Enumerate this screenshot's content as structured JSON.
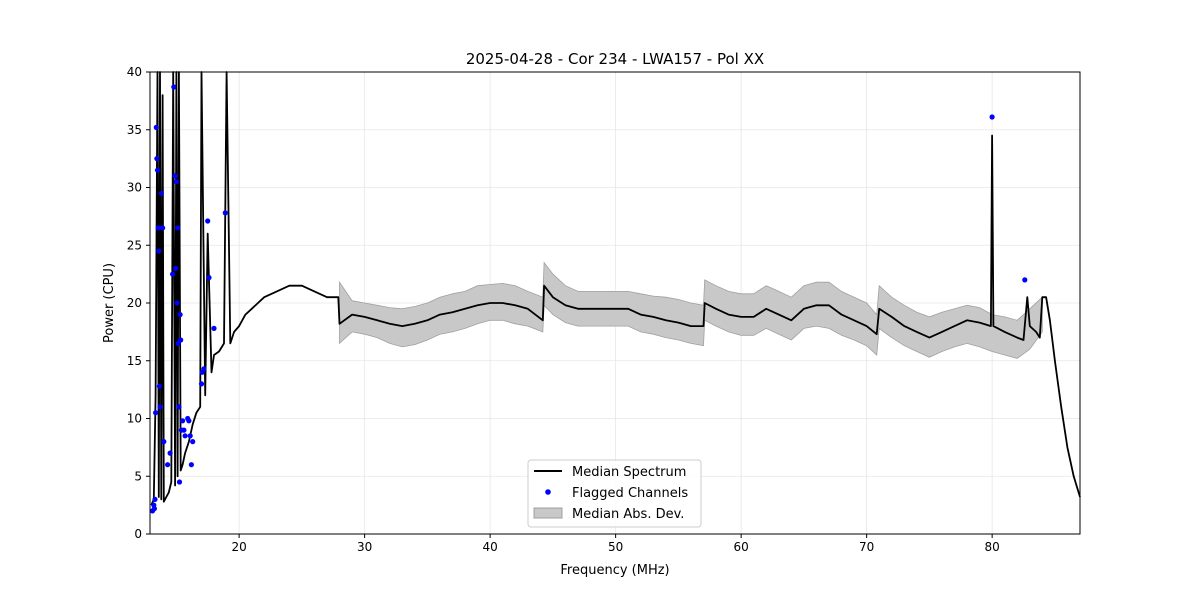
{
  "chart_data": {
    "type": "line",
    "title": "2025-04-28 - Cor 234 - LWA157 - Pol XX",
    "xlabel": "Frequency (MHz)",
    "ylabel": "Power (CPU)",
    "xlim": [
      12.9,
      87.0
    ],
    "ylim": [
      0,
      40
    ],
    "xticks": [
      20,
      30,
      40,
      50,
      60,
      70,
      80
    ],
    "yticks": [
      0,
      5,
      10,
      15,
      20,
      25,
      30,
      35,
      40
    ],
    "grid": true,
    "legend": {
      "position": "lower-center",
      "entries": [
        "Median Spectrum",
        "Flagged Channels",
        "Median Abs. Dev."
      ]
    },
    "colors": {
      "line": "#000000",
      "flag": "#0000ff",
      "band": "#c8c8c8",
      "band_edge": "#a0a0a0",
      "grid": "#e6e6e6"
    },
    "series": [
      {
        "name": "Median Spectrum",
        "x": [
          13.0,
          13.2,
          13.35,
          13.5,
          13.6,
          13.7,
          13.8,
          13.9,
          14.0,
          14.2,
          14.4,
          14.6,
          14.75,
          14.9,
          15.0,
          15.1,
          15.2,
          15.35,
          15.5,
          15.7,
          16.0,
          16.3,
          16.6,
          16.9,
          17.0,
          17.3,
          17.5,
          17.8,
          18.0,
          18.4,
          18.8,
          19.0,
          19.3,
          19.6,
          20.0,
          20.5,
          21.0,
          22.0,
          23.0,
          24.0,
          25.0,
          26.0,
          27.0,
          27.9,
          28.0,
          29.0,
          30.0,
          31.0,
          32.0,
          33.0,
          34.0,
          35.0,
          36.0,
          37.0,
          38.0,
          39.0,
          40.0,
          41.0,
          42.0,
          43.0,
          44.2,
          44.3,
          45.0,
          46.0,
          47.0,
          48.0,
          49.0,
          50.0,
          51.0,
          52.0,
          53.0,
          54.0,
          55.0,
          56.0,
          57.0,
          57.1,
          58.0,
          59.0,
          60.0,
          61.0,
          62.0,
          63.0,
          64.0,
          65.0,
          66.0,
          67.0,
          68.0,
          69.0,
          70.0,
          70.8,
          71.0,
          72.0,
          73.0,
          74.0,
          75.0,
          76.0,
          77.0,
          78.0,
          79.0,
          79.9,
          80.0,
          80.1,
          81.0,
          82.0,
          82.5,
          82.8,
          83.0,
          83.5,
          83.8,
          84.0,
          84.3,
          84.6,
          85.0,
          85.5,
          86.0,
          86.5,
          87.0
        ],
        "y": [
          2.5,
          3.0,
          12.0,
          40.0,
          3.2,
          40.0,
          3.0,
          38.0,
          2.8,
          3.2,
          3.6,
          4.5,
          40.0,
          4.2,
          40.0,
          5.0,
          40.0,
          5.5,
          6.0,
          7.0,
          8.0,
          9.5,
          10.5,
          11.0,
          40.0,
          12.0,
          26.0,
          14.0,
          15.5,
          15.8,
          16.5,
          40.0,
          16.5,
          17.5,
          18.0,
          19.0,
          19.5,
          20.5,
          21.0,
          21.5,
          21.5,
          21.0,
          20.5,
          20.5,
          18.2,
          19.0,
          18.8,
          18.5,
          18.2,
          18.0,
          18.2,
          18.5,
          19.0,
          19.2,
          19.5,
          19.8,
          20.0,
          20.0,
          19.8,
          19.5,
          18.5,
          21.5,
          20.5,
          19.8,
          19.5,
          19.5,
          19.5,
          19.5,
          19.5,
          19.0,
          18.8,
          18.5,
          18.3,
          18.0,
          18.0,
          20.0,
          19.5,
          19.0,
          18.8,
          18.8,
          19.5,
          19.0,
          18.5,
          19.5,
          19.8,
          19.8,
          19.0,
          18.5,
          18.0,
          17.3,
          19.5,
          18.8,
          18.0,
          17.5,
          17.0,
          17.5,
          18.0,
          18.5,
          18.3,
          18.0,
          34.5,
          18.0,
          17.5,
          17.0,
          16.8,
          20.5,
          18.0,
          17.5,
          17.0,
          20.5,
          20.5,
          18.5,
          15.0,
          11.0,
          7.5,
          5.0,
          3.2
        ]
      }
    ],
    "band": {
      "name": "Median Abs. Dev.",
      "x": [
        28.0,
        29.0,
        30.0,
        31.0,
        32.0,
        33.0,
        34.0,
        35.0,
        36.0,
        37.0,
        38.0,
        39.0,
        40.0,
        41.0,
        42.0,
        43.0,
        44.2,
        44.3,
        45.0,
        46.0,
        47.0,
        48.0,
        49.0,
        50.0,
        51.0,
        52.0,
        53.0,
        54.0,
        55.0,
        56.0,
        57.0,
        57.1,
        58.0,
        59.0,
        60.0,
        61.0,
        62.0,
        63.0,
        64.0,
        65.0,
        66.0,
        67.0,
        68.0,
        69.0,
        70.0,
        70.8,
        71.0,
        72.0,
        73.0,
        74.0,
        75.0,
        76.0,
        77.0,
        78.0,
        79.0,
        80.0,
        81.0,
        82.0,
        83.0,
        84.0
      ],
      "upper": [
        21.8,
        20.2,
        20.0,
        19.8,
        19.6,
        19.5,
        19.7,
        20.0,
        20.5,
        20.8,
        21.0,
        21.5,
        21.6,
        21.7,
        21.5,
        21.0,
        20.5,
        23.5,
        22.5,
        21.5,
        21.0,
        21.0,
        21.0,
        21.0,
        21.0,
        20.8,
        20.6,
        20.5,
        20.3,
        20.0,
        19.8,
        22.0,
        21.5,
        21.0,
        20.8,
        20.8,
        21.5,
        21.0,
        20.5,
        21.5,
        21.8,
        21.8,
        21.0,
        20.5,
        20.0,
        19.0,
        21.5,
        20.5,
        19.8,
        19.2,
        18.8,
        19.2,
        19.5,
        19.8,
        19.6,
        19.0,
        18.8,
        18.5,
        19.5,
        20.5
      ],
      "lower": [
        16.5,
        17.5,
        17.3,
        17.0,
        16.5,
        16.2,
        16.4,
        16.8,
        17.3,
        17.5,
        17.8,
        18.2,
        18.5,
        18.5,
        18.2,
        18.0,
        17.5,
        19.8,
        19.0,
        18.3,
        18.0,
        18.0,
        18.0,
        18.0,
        18.0,
        17.5,
        17.3,
        17.0,
        16.8,
        16.5,
        16.3,
        18.5,
        18.0,
        17.5,
        17.2,
        17.2,
        17.8,
        17.3,
        16.8,
        17.8,
        18.0,
        17.8,
        17.2,
        16.8,
        16.3,
        15.5,
        17.8,
        17.0,
        16.3,
        15.8,
        15.3,
        15.8,
        16.2,
        16.5,
        16.2,
        15.8,
        15.5,
        15.2,
        16.0,
        17.5
      ]
    },
    "flagged": {
      "name": "Flagged Channels",
      "x": [
        13.1,
        13.2,
        13.25,
        13.3,
        13.35,
        13.4,
        13.45,
        13.5,
        13.55,
        13.6,
        13.65,
        13.7,
        13.8,
        13.9,
        14.0,
        14.3,
        14.5,
        14.7,
        14.8,
        14.9,
        14.95,
        15.0,
        15.05,
        15.1,
        15.15,
        15.2,
        15.25,
        15.3,
        15.35,
        15.4,
        15.5,
        15.6,
        15.7,
        15.9,
        16.0,
        16.1,
        16.2,
        16.3,
        17.0,
        17.05,
        17.2,
        17.5,
        17.6,
        18.0,
        18.9,
        80.0,
        82.6
      ],
      "y": [
        2.0,
        2.5,
        2.2,
        3.0,
        10.5,
        35.2,
        32.5,
        31.5,
        26.5,
        24.5,
        12.8,
        11.0,
        29.5,
        26.5,
        8.0,
        6.0,
        7.0,
        22.5,
        38.7,
        31.0,
        23.0,
        30.5,
        20.0,
        26.5,
        16.5,
        11.0,
        4.5,
        19.0,
        16.8,
        9.0,
        9.8,
        9.0,
        8.5,
        10.0,
        9.8,
        8.5,
        6.0,
        8.0,
        13.0,
        14.0,
        14.3,
        27.1,
        22.2,
        17.8,
        27.8,
        36.1,
        22.0
      ]
    }
  }
}
